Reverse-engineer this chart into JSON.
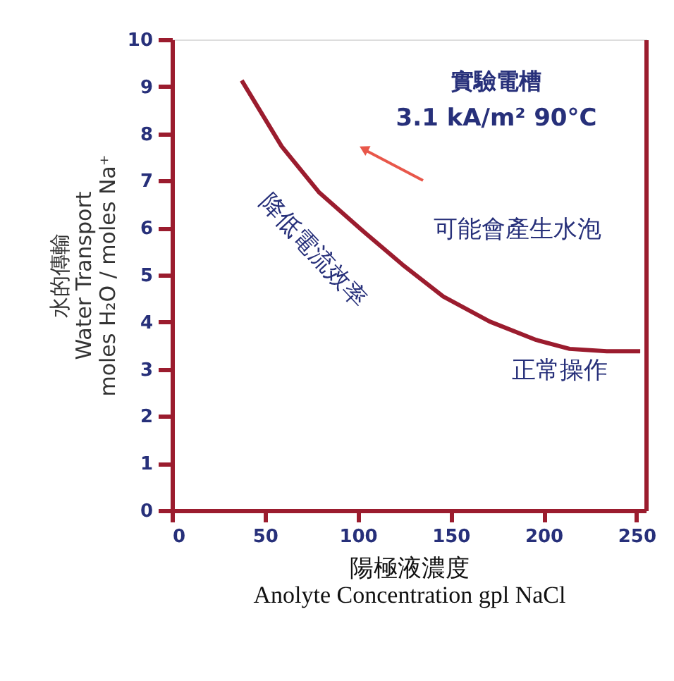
{
  "chart_data": {
    "type": "line",
    "xlabel": "陽極液濃度\nAnolyte Concentration gpl NaCl",
    "ylabel": "水的傳輸\nWater Transport\nmoles H₂O / moles Na⁺",
    "x": [
      37.5,
      59,
      79,
      104,
      124,
      146,
      171,
      196,
      214,
      234,
      252
    ],
    "series": [
      {
        "color": "#9b1c2e",
        "values": [
          9.13,
          7.73,
          6.76,
          5.89,
          5.22,
          4.54,
          4.01,
          3.62,
          3.43,
          3.38,
          3.38
        ]
      }
    ],
    "xlim": [
      0,
      255
    ],
    "xticks": [
      0,
      50,
      100,
      150,
      200,
      250
    ],
    "ylim": [
      0,
      10
    ],
    "yticks": [
      0,
      1,
      2,
      3,
      4,
      5,
      6,
      7,
      8,
      9,
      10
    ],
    "grid": false,
    "marker": "none",
    "line_style": "solid",
    "annotations": [
      "實驗電槽",
      "3.1 kA/m²    90°C",
      "降低電流效率",
      "可能會產生水泡",
      "正常操作"
    ]
  }
}
